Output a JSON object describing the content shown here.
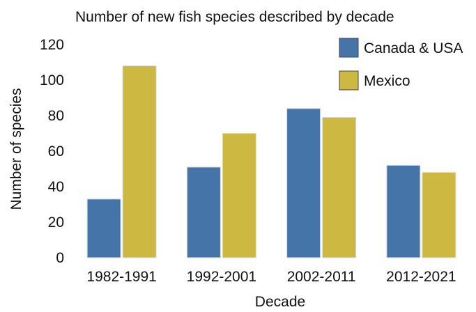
{
  "chart_data": {
    "type": "bar",
    "title": "Number of new fish species described by decade",
    "xlabel": "Decade",
    "ylabel": "Number of species",
    "categories": [
      "1982-1991",
      "1992-2001",
      "2002-2011",
      "2012-2021"
    ],
    "series": [
      {
        "name": "Canada & USA",
        "color": "#4575a8",
        "values": [
          33,
          51,
          84,
          52
        ]
      },
      {
        "name": "Mexico",
        "color": "#cdb941",
        "values": [
          108,
          70,
          79,
          48
        ]
      }
    ],
    "ylim": [
      0,
      120
    ],
    "yticks": [
      0,
      20,
      40,
      60,
      80,
      100,
      120
    ],
    "grid": false,
    "legend_position": "top-right"
  }
}
